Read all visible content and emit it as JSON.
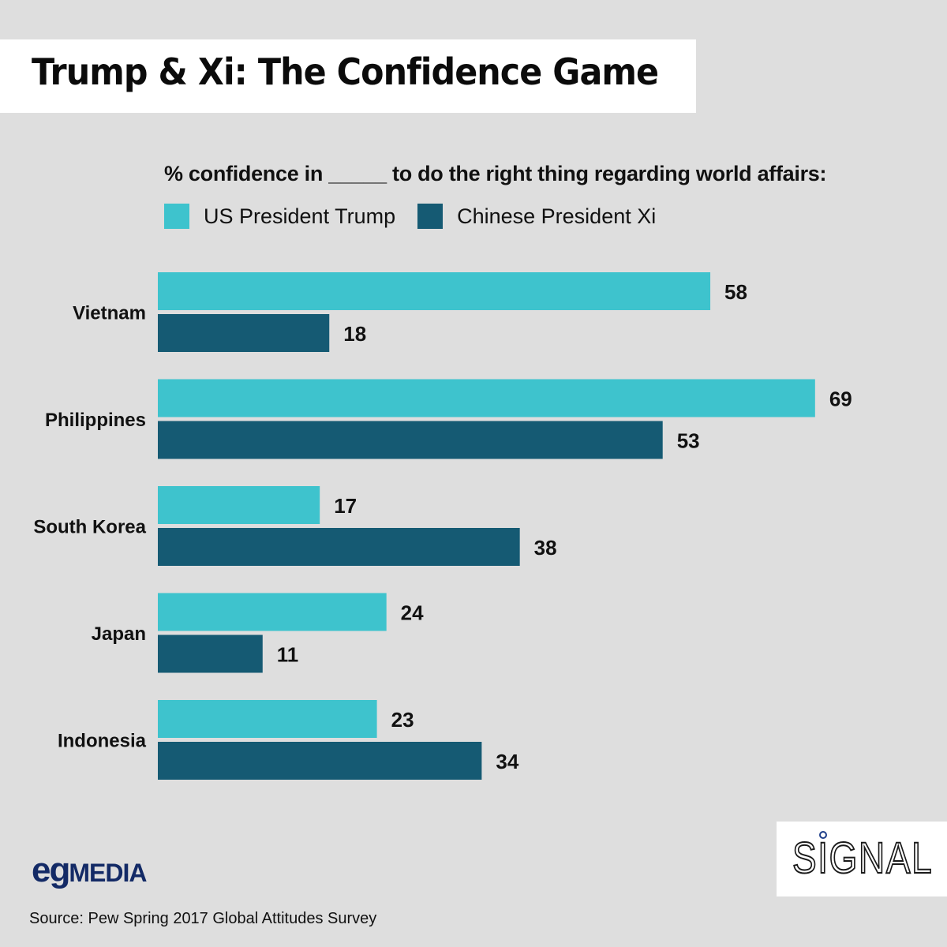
{
  "header": {
    "title": "Trump & Xi: The Confidence Game"
  },
  "chart_data": {
    "type": "bar",
    "orientation": "horizontal",
    "title": "Trump & Xi: The Confidence Game",
    "subtitle": "% confidence in _____ to do the right thing regarding world affairs:",
    "xlabel": "",
    "ylabel": "",
    "xlim": [
      0,
      100
    ],
    "grid": false,
    "legend_position": "top-left",
    "categories": [
      "Vietnam",
      "Philippines",
      "South Korea",
      "Japan",
      "Indonesia"
    ],
    "series": [
      {
        "name": "US President Trump",
        "color": "#3ec3cd",
        "values": [
          58,
          69,
          17,
          24,
          23
        ]
      },
      {
        "name": "Chinese President Xi",
        "color": "#155a73",
        "values": [
          18,
          53,
          38,
          11,
          34
        ]
      }
    ]
  },
  "footer": {
    "logo_eg": "eg",
    "logo_media": "MEDIA",
    "source": "Source: Pew Spring 2017 Global Attitudes Survey",
    "signal_logo": "SIGNAL"
  }
}
